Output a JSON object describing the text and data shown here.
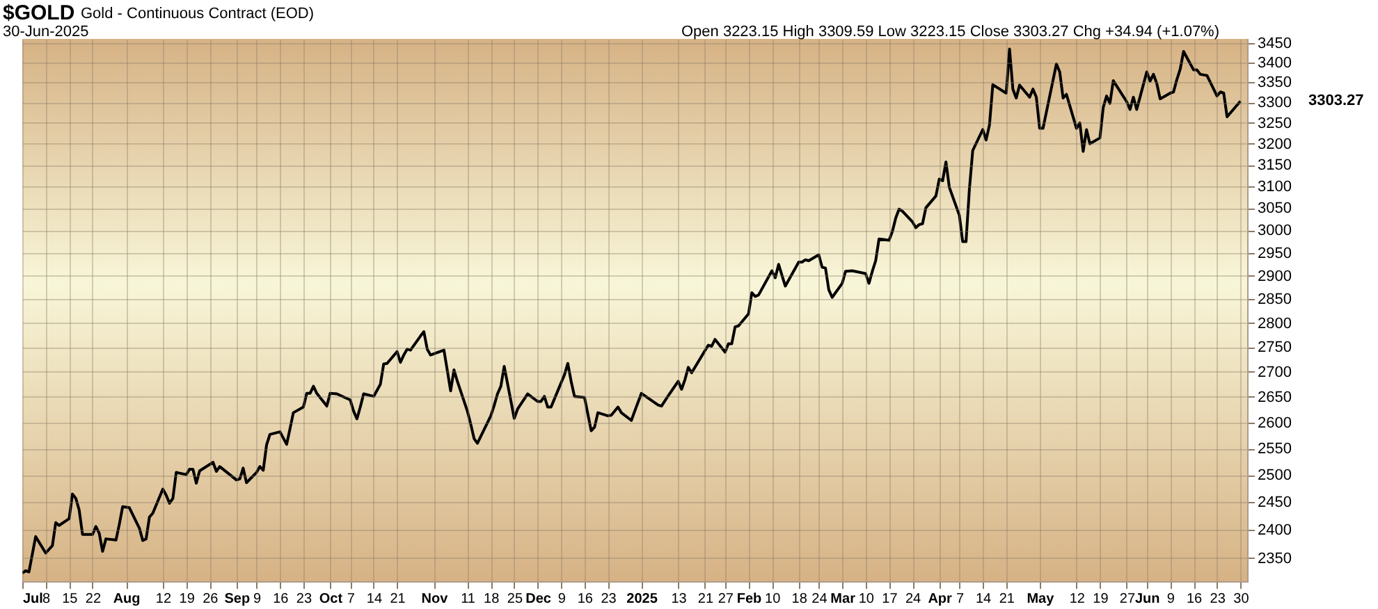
{
  "chart_data": {
    "type": "line",
    "title": "$GOLD",
    "subtitle": "Gold - Continuous Contract (EOD)",
    "annotations": [
      "30-Jun-2025",
      "Open 3223.15  High 3309.59  Low 3223.15  Close 3303.27  Chg +34.94 (+1.07%)",
      "3303.27"
    ],
    "x": [
      "2024-07-01",
      "2024-07-02",
      "2024-07-03",
      "2024-07-05",
      "2024-07-08",
      "2024-07-10",
      "2024-07-11",
      "2024-07-12",
      "2024-07-15",
      "2024-07-16",
      "2024-07-17",
      "2024-07-18",
      "2024-07-19",
      "2024-07-22",
      "2024-07-23",
      "2024-07-24",
      "2024-07-25",
      "2024-07-26",
      "2024-07-29",
      "2024-07-30",
      "2024-07-31",
      "2024-08-02",
      "2024-08-05",
      "2024-08-06",
      "2024-08-07",
      "2024-08-08",
      "2024-08-09",
      "2024-08-12",
      "2024-08-13",
      "2024-08-14",
      "2024-08-15",
      "2024-08-16",
      "2024-08-19",
      "2024-08-20",
      "2024-08-21",
      "2024-08-22",
      "2024-08-23",
      "2024-08-27",
      "2024-08-28",
      "2024-08-29",
      "2024-09-03",
      "2024-09-04",
      "2024-09-05",
      "2024-09-06",
      "2024-09-09",
      "2024-09-10",
      "2024-09-11",
      "2024-09-12",
      "2024-09-13",
      "2024-09-16",
      "2024-09-18",
      "2024-09-19",
      "2024-09-20",
      "2024-09-23",
      "2024-09-24",
      "2024-09-25",
      "2024-09-26",
      "2024-09-27",
      "2024-09-30",
      "2024-10-01",
      "2024-10-03",
      "2024-10-04",
      "2024-10-07",
      "2024-10-08",
      "2024-10-09",
      "2024-10-10",
      "2024-10-11",
      "2024-10-14",
      "2024-10-15",
      "2024-10-16",
      "2024-10-17",
      "2024-10-18",
      "2024-10-21",
      "2024-10-22",
      "2024-10-23",
      "2024-10-24",
      "2024-10-25",
      "2024-10-28",
      "2024-10-29",
      "2024-10-30",
      "2024-10-31",
      "2024-11-04",
      "2024-11-06",
      "2024-11-07",
      "2024-11-08",
      "2024-11-11",
      "2024-11-12",
      "2024-11-13",
      "2024-11-14",
      "2024-11-18",
      "2024-11-19",
      "2024-11-20",
      "2024-11-21",
      "2024-11-22",
      "2024-11-25",
      "2024-11-26",
      "2024-11-27",
      "2024-11-29",
      "2024-12-02",
      "2024-12-03",
      "2024-12-04",
      "2024-12-05",
      "2024-12-06",
      "2024-12-10",
      "2024-12-11",
      "2024-12-12",
      "2024-12-13",
      "2024-12-16",
      "2024-12-18",
      "2024-12-19",
      "2024-12-20",
      "2024-12-23",
      "2024-12-24",
      "2024-12-26",
      "2024-12-27",
      "2024-12-30",
      "2024-12-31",
      "2025-01-02",
      "2025-01-07",
      "2025-01-08",
      "2025-01-10",
      "2025-01-13",
      "2025-01-14",
      "2025-01-15",
      "2025-01-16",
      "2025-01-17",
      "2025-01-21",
      "2025-01-22",
      "2025-01-23",
      "2025-01-24",
      "2025-01-27",
      "2025-01-28",
      "2025-01-29",
      "2025-01-30",
      "2025-01-31",
      "2025-02-03",
      "2025-02-04",
      "2025-02-05",
      "2025-02-06",
      "2025-02-10",
      "2025-02-11",
      "2025-02-12",
      "2025-02-14",
      "2025-02-18",
      "2025-02-19",
      "2025-02-20",
      "2025-02-21",
      "2025-02-24",
      "2025-02-25",
      "2025-02-26",
      "2025-02-27",
      "2025-02-28",
      "2025-03-03",
      "2025-03-04",
      "2025-03-06",
      "2025-03-10",
      "2025-03-11",
      "2025-03-12",
      "2025-03-13",
      "2025-03-14",
      "2025-03-17",
      "2025-03-18",
      "2025-03-19",
      "2025-03-20",
      "2025-03-21",
      "2025-03-24",
      "2025-03-25",
      "2025-03-26",
      "2025-03-27",
      "2025-03-28",
      "2025-03-31",
      "2025-04-01",
      "2025-04-02",
      "2025-04-03",
      "2025-04-04",
      "2025-04-07",
      "2025-04-08",
      "2025-04-09",
      "2025-04-10",
      "2025-04-11",
      "2025-04-14",
      "2025-04-15",
      "2025-04-16",
      "2025-04-17",
      "2025-04-21",
      "2025-04-22",
      "2025-04-23",
      "2025-04-24",
      "2025-04-25",
      "2025-04-28",
      "2025-04-29",
      "2025-04-30",
      "2025-05-01",
      "2025-05-02",
      "2025-05-06",
      "2025-05-07",
      "2025-05-08",
      "2025-05-09",
      "2025-05-12",
      "2025-05-13",
      "2025-05-14",
      "2025-05-15",
      "2025-05-16",
      "2025-05-19",
      "2025-05-20",
      "2025-05-21",
      "2025-05-22",
      "2025-05-23",
      "2025-05-27",
      "2025-05-28",
      "2025-05-29",
      "2025-05-30",
      "2025-06-02",
      "2025-06-03",
      "2025-06-04",
      "2025-06-05",
      "2025-06-06",
      "2025-06-09",
      "2025-06-10",
      "2025-06-11",
      "2025-06-12",
      "2025-06-13",
      "2025-06-16",
      "2025-06-17",
      "2025-06-18",
      "2025-06-20",
      "2025-06-23",
      "2025-06-24",
      "2025-06-25",
      "2025-06-26",
      "2025-06-30"
    ],
    "series": [
      {
        "color": "#000000",
        "values": [
          2324,
          2328,
          2326,
          2388,
          2359,
          2372,
          2413,
          2408,
          2420,
          2465,
          2457,
          2436,
          2392,
          2392,
          2406,
          2394,
          2362,
          2384,
          2382,
          2410,
          2442,
          2440,
          2403,
          2381,
          2384,
          2423,
          2430,
          2474,
          2463,
          2448,
          2457,
          2505,
          2501,
          2511,
          2511,
          2485,
          2508,
          2524,
          2507,
          2516,
          2491,
          2493,
          2513,
          2486,
          2505,
          2516,
          2509,
          2557,
          2577,
          2582,
          2558,
          2588,
          2619,
          2630,
          2657,
          2657,
          2671,
          2657,
          2632,
          2657,
          2656,
          2653,
          2644,
          2622,
          2607,
          2630,
          2656,
          2651,
          2663,
          2675,
          2716,
          2717,
          2741,
          2719,
          2734,
          2746,
          2744,
          2773,
          2782,
          2746,
          2734,
          2744,
          2662,
          2704,
          2681,
          2622,
          2597,
          2569,
          2560,
          2613,
          2633,
          2656,
          2671,
          2711,
          2608,
          2626,
          2636,
          2656,
          2641,
          2641,
          2651,
          2630,
          2630,
          2694,
          2717,
          2681,
          2651,
          2649,
          2584,
          2591,
          2619,
          2613,
          2614,
          2630,
          2619,
          2604,
          2622,
          2657,
          2634,
          2632,
          2652,
          2681,
          2665,
          2684,
          2709,
          2698,
          2743,
          2754,
          2752,
          2766,
          2740,
          2757,
          2757,
          2792,
          2794,
          2819,
          2864,
          2856,
          2859,
          2911,
          2896,
          2925,
          2878,
          2930,
          2930,
          2935,
          2933,
          2946,
          2919,
          2917,
          2870,
          2854,
          2884,
          2910,
          2911,
          2905,
          2884,
          2910,
          2933,
          2981,
          2978,
          2998,
          3028,
          3048,
          3043,
          3019,
          3006,
          3013,
          3015,
          3051,
          3078,
          3117,
          3113,
          3157,
          3098,
          3034,
          2975,
          2975,
          3093,
          3184,
          3234,
          3209,
          3245,
          3344,
          3323,
          3434,
          3333,
          3311,
          3343,
          3313,
          3333,
          3313,
          3237,
          3237,
          3396,
          3376,
          3311,
          3320,
          3237,
          3250,
          3182,
          3234,
          3200,
          3214,
          3288,
          3316,
          3298,
          3354,
          3302,
          3283,
          3313,
          3283,
          3376,
          3353,
          3370,
          3347,
          3309,
          3323,
          3326,
          3357,
          3383,
          3428,
          3381,
          3381,
          3370,
          3367,
          3316,
          3326,
          3323,
          3265,
          3303.27
        ]
      }
    ],
    "xlim": [
      "2024-07-01",
      "2025-07-02"
    ],
    "xticks": [
      {
        "value": "2024-07-01",
        "label": "Jul"
      },
      {
        "value": "2024-07-08",
        "label": "8"
      },
      {
        "value": "2024-07-15",
        "label": "15"
      },
      {
        "value": "2024-07-22",
        "label": "22"
      },
      {
        "value": "2024-08-01",
        "label": "Aug"
      },
      {
        "value": "2024-08-12",
        "label": "12"
      },
      {
        "value": "2024-08-19",
        "label": "19"
      },
      {
        "value": "2024-08-26",
        "label": "26"
      },
      {
        "value": "2024-09-03",
        "label": "Sep"
      },
      {
        "value": "2024-09-09",
        "label": "9"
      },
      {
        "value": "2024-09-16",
        "label": "16"
      },
      {
        "value": "2024-09-23",
        "label": "23"
      },
      {
        "value": "2024-10-01",
        "label": "Oct"
      },
      {
        "value": "2024-10-07",
        "label": "7"
      },
      {
        "value": "2024-10-14",
        "label": "14"
      },
      {
        "value": "2024-10-21",
        "label": "21"
      },
      {
        "value": "2024-11-01",
        "label": "Nov"
      },
      {
        "value": "2024-11-11",
        "label": "11"
      },
      {
        "value": "2024-11-18",
        "label": "18"
      },
      {
        "value": "2024-11-25",
        "label": "25"
      },
      {
        "value": "2024-12-02",
        "label": "Dec"
      },
      {
        "value": "2024-12-09",
        "label": "9"
      },
      {
        "value": "2024-12-16",
        "label": "16"
      },
      {
        "value": "2024-12-23",
        "label": "23"
      },
      {
        "value": "2025-01-02",
        "label": "2025"
      },
      {
        "value": "2025-01-13",
        "label": "13"
      },
      {
        "value": "2025-01-21",
        "label": "21"
      },
      {
        "value": "2025-01-27",
        "label": "27"
      },
      {
        "value": "2025-02-03",
        "label": "Feb"
      },
      {
        "value": "2025-02-10",
        "label": "10"
      },
      {
        "value": "2025-02-18",
        "label": "18"
      },
      {
        "value": "2025-02-24",
        "label": "24"
      },
      {
        "value": "2025-03-03",
        "label": "Mar"
      },
      {
        "value": "2025-03-10",
        "label": "10"
      },
      {
        "value": "2025-03-17",
        "label": "17"
      },
      {
        "value": "2025-03-24",
        "label": "24"
      },
      {
        "value": "2025-04-01",
        "label": "Apr"
      },
      {
        "value": "2025-04-07",
        "label": "7"
      },
      {
        "value": "2025-04-14",
        "label": "14"
      },
      {
        "value": "2025-04-21",
        "label": "21"
      },
      {
        "value": "2025-05-01",
        "label": "May"
      },
      {
        "value": "2025-05-12",
        "label": "12"
      },
      {
        "value": "2025-05-19",
        "label": "19"
      },
      {
        "value": "2025-05-27",
        "label": "27"
      },
      {
        "value": "2025-06-02",
        "label": "Jun"
      },
      {
        "value": "2025-06-09",
        "label": "9"
      },
      {
        "value": "2025-06-16",
        "label": "16"
      },
      {
        "value": "2025-06-23",
        "label": "23"
      },
      {
        "value": "2025-06-30",
        "label": "30"
      }
    ],
    "ylim": [
      2310,
      3460
    ],
    "yticks": [
      2350,
      2400,
      2450,
      2500,
      2550,
      2600,
      2650,
      2700,
      2750,
      2800,
      2850,
      2900,
      2950,
      3000,
      3050,
      3100,
      3150,
      3200,
      3250,
      3300,
      3350,
      3400,
      3450
    ],
    "log": true,
    "grid": true,
    "line_style": "solid"
  }
}
